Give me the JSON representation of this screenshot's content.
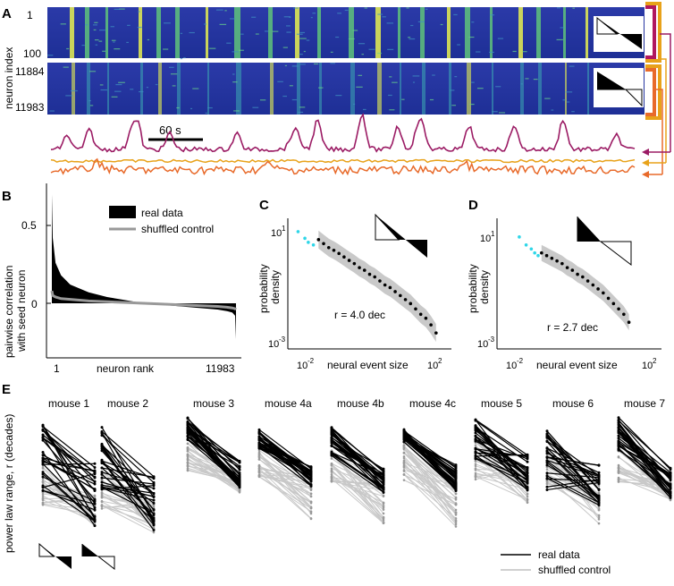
{
  "chart_data": [
    {
      "panel": "A",
      "type": "heatmap",
      "ylabel": "neuron index",
      "top_ticks": [
        "1",
        "100"
      ],
      "bottom_ticks": [
        "11884",
        "11983"
      ],
      "scale_bar_label": "60 s",
      "traces": [
        {
          "name": "magenta",
          "color": "#9b1b64"
        },
        {
          "name": "yellow",
          "color": "#e8a21a"
        },
        {
          "name": "orange",
          "color": "#e86a2a"
        }
      ]
    },
    {
      "panel": "B",
      "type": "area",
      "ylabel": "pairwise correlation with seed neuron",
      "xlabel": "neuron rank",
      "x_ticks": [
        "1",
        "11983"
      ],
      "y_ticks": [
        "0.5",
        "0"
      ],
      "ylim": [
        -0.3,
        0.7
      ],
      "legend": [
        "real data",
        "shuffled control"
      ],
      "rank": [
        0,
        0.005,
        0.02,
        0.05,
        0.1,
        0.2,
        0.3,
        0.4,
        0.5,
        0.6,
        0.7,
        0.8,
        0.9,
        0.95,
        0.98,
        0.995,
        1
      ],
      "real_values": [
        0.7,
        0.42,
        0.26,
        0.18,
        0.12,
        0.07,
        0.04,
        0.02,
        0.0,
        -0.01,
        -0.02,
        -0.03,
        -0.04,
        -0.05,
        -0.06,
        -0.08,
        -0.23
      ],
      "shuffled_values": [
        0.08,
        0.05,
        0.04,
        0.03,
        0.025,
        0.015,
        0.01,
        0.005,
        0.0,
        -0.005,
        -0.01,
        -0.015,
        -0.02,
        -0.025,
        -0.03,
        -0.035,
        -0.04
      ]
    },
    {
      "panel": "C",
      "type": "scatter",
      "xlabel": "neural event size",
      "ylabel": "probability density",
      "x_ticks": [
        "10",
        "10"
      ],
      "x_tick_exps": [
        "-2",
        "2"
      ],
      "y_ticks": [
        "10",
        "10"
      ],
      "y_tick_exps": [
        "1",
        "-3"
      ],
      "xlim": [
        -2.6,
        2.2
      ],
      "ylim": [
        -3.3,
        1.6
      ],
      "annotation": "r = 4.0 dec",
      "cyan_x": [
        -2.3,
        -2.1,
        -2.0,
        -1.85
      ],
      "cyan_y": [
        1.1,
        0.85,
        0.7,
        0.6
      ],
      "black_x": [
        -1.7,
        -1.55,
        -1.4,
        -1.25,
        -1.1,
        -0.95,
        -0.8,
        -0.65,
        -0.5,
        -0.35,
        -0.2,
        -0.05,
        0.1,
        0.25,
        0.4,
        0.55,
        0.7,
        0.85,
        1.0,
        1.15,
        1.3,
        1.45,
        1.6,
        1.75
      ],
      "black_y": [
        0.8,
        0.65,
        0.5,
        0.4,
        0.28,
        0.15,
        0.02,
        -0.1,
        -0.25,
        -0.35,
        -0.5,
        -0.6,
        -0.75,
        -0.9,
        -1.0,
        -1.15,
        -1.3,
        -1.45,
        -1.6,
        -1.8,
        -2.0,
        -2.15,
        -2.4,
        -2.7
      ]
    },
    {
      "panel": "D",
      "type": "scatter",
      "xlabel": "neural event size",
      "ylabel": "probability density",
      "x_ticks": [
        "10",
        "10"
      ],
      "x_tick_exps": [
        "-2",
        "2"
      ],
      "y_ticks": [
        "10",
        "10"
      ],
      "y_tick_exps": [
        "1",
        "-3"
      ],
      "xlim": [
        -2.6,
        2.2
      ],
      "ylim": [
        -3.3,
        1.6
      ],
      "annotation": "r = 2.7 dec",
      "cyan_x": [
        -1.95,
        -1.75,
        -1.6,
        -1.5,
        -1.4
      ],
      "cyan_y": [
        0.9,
        0.6,
        0.45,
        0.3,
        0.2
      ],
      "black_x": [
        -1.3,
        -1.15,
        -1.0,
        -0.85,
        -0.7,
        -0.55,
        -0.4,
        -0.25,
        -0.1,
        0.05,
        0.2,
        0.35,
        0.5,
        0.65,
        0.8,
        0.95,
        1.1,
        1.25
      ],
      "black_y": [
        0.3,
        0.2,
        0.1,
        0.0,
        -0.1,
        -0.25,
        -0.35,
        -0.5,
        -0.6,
        -0.75,
        -0.9,
        -1.05,
        -1.2,
        -1.4,
        -1.6,
        -1.8,
        -2.0,
        -2.3
      ]
    },
    {
      "panel": "E",
      "type": "line",
      "ylabel": "power law range, r (decades)",
      "legend": [
        "real data",
        "shuffled control"
      ],
      "mice": [
        {
          "name": "mouse 1",
          "real_left": [
            4.3,
            1.6
          ],
          "real_right": [
            2.7,
            0.3
          ],
          "shuf_left": [
            2.6,
            1.1
          ],
          "shuf_right": [
            1.6,
            0.3
          ]
        },
        {
          "name": "mouse 2",
          "real_left": [
            4.1,
            1.7
          ],
          "real_right": [
            2.3,
            0.1
          ],
          "shuf_left": [
            2.4,
            1.0
          ],
          "shuf_right": [
            1.4,
            0.1
          ]
        },
        {
          "name": "mouse 3",
          "real_left": [
            4.5,
            3.6
          ],
          "real_right": [
            2.8,
            1.8
          ],
          "shuf_left": [
            3.5,
            2.4
          ],
          "shuf_right": [
            2.4,
            1.6
          ]
        },
        {
          "name": "mouse 4a",
          "real_left": [
            4.0,
            3.2
          ],
          "real_right": [
            2.6,
            1.8
          ],
          "shuf_left": [
            3.3,
            2.2
          ],
          "shuf_right": [
            2.2,
            0.6
          ]
        },
        {
          "name": "mouse 4b",
          "real_left": [
            4.1,
            3.0
          ],
          "real_right": [
            2.5,
            1.6
          ],
          "shuf_left": [
            3.2,
            2.0
          ],
          "shuf_right": [
            2.0,
            0.4
          ]
        },
        {
          "name": "mouse 4c",
          "real_left": [
            4.0,
            3.5
          ],
          "real_right": [
            2.7,
            1.6
          ],
          "shuf_left": [
            3.4,
            2.0
          ],
          "shuf_right": [
            2.0,
            0.3
          ]
        },
        {
          "name": "mouse 5",
          "real_left": [
            4.4,
            2.8
          ],
          "real_right": [
            3.1,
            1.5
          ],
          "shuf_left": [
            3.6,
            2.1
          ],
          "shuf_right": [
            2.6,
            1.2
          ]
        },
        {
          "name": "mouse 6",
          "real_left": [
            4.0,
            1.6
          ],
          "real_right": [
            2.8,
            1.1
          ],
          "shuf_left": [
            3.4,
            1.8
          ],
          "shuf_right": [
            2.2,
            0.4
          ]
        },
        {
          "name": "mouse 7",
          "real_left": [
            4.5,
            3.2
          ],
          "real_right": [
            2.6,
            1.4
          ],
          "shuf_left": [
            3.5,
            2.0
          ],
          "shuf_right": [
            2.0,
            1.3
          ]
        }
      ]
    }
  ],
  "panel_labels": {
    "A": "A",
    "B": "B",
    "C": "C",
    "D": "D",
    "E": "E"
  }
}
